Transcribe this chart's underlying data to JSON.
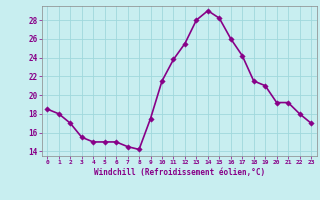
{
  "x": [
    0,
    1,
    2,
    3,
    4,
    5,
    6,
    7,
    8,
    9,
    10,
    11,
    12,
    13,
    14,
    15,
    16,
    17,
    18,
    19,
    20,
    21,
    22,
    23
  ],
  "y": [
    18.5,
    18.0,
    17.0,
    15.5,
    15.0,
    15.0,
    15.0,
    14.5,
    14.2,
    17.5,
    21.5,
    23.8,
    25.5,
    28.0,
    29.0,
    28.2,
    26.0,
    24.2,
    21.5,
    21.0,
    19.2,
    19.2,
    18.0,
    17.0
  ],
  "line_color": "#880088",
  "marker_color": "#880088",
  "bg_color": "#c8eef0",
  "grid_color": "#a0d8dc",
  "xlabel": "Windchill (Refroidissement éolien,°C)",
  "xlim": [
    -0.5,
    23.5
  ],
  "ylim": [
    13.5,
    29.5
  ],
  "yticks": [
    14,
    16,
    18,
    20,
    22,
    24,
    26,
    28
  ],
  "xticks": [
    0,
    1,
    2,
    3,
    4,
    5,
    6,
    7,
    8,
    9,
    10,
    11,
    12,
    13,
    14,
    15,
    16,
    17,
    18,
    19,
    20,
    21,
    22,
    23
  ],
  "tick_color": "#880088",
  "label_color": "#880088",
  "linewidth": 1.2,
  "markersize": 2.8
}
